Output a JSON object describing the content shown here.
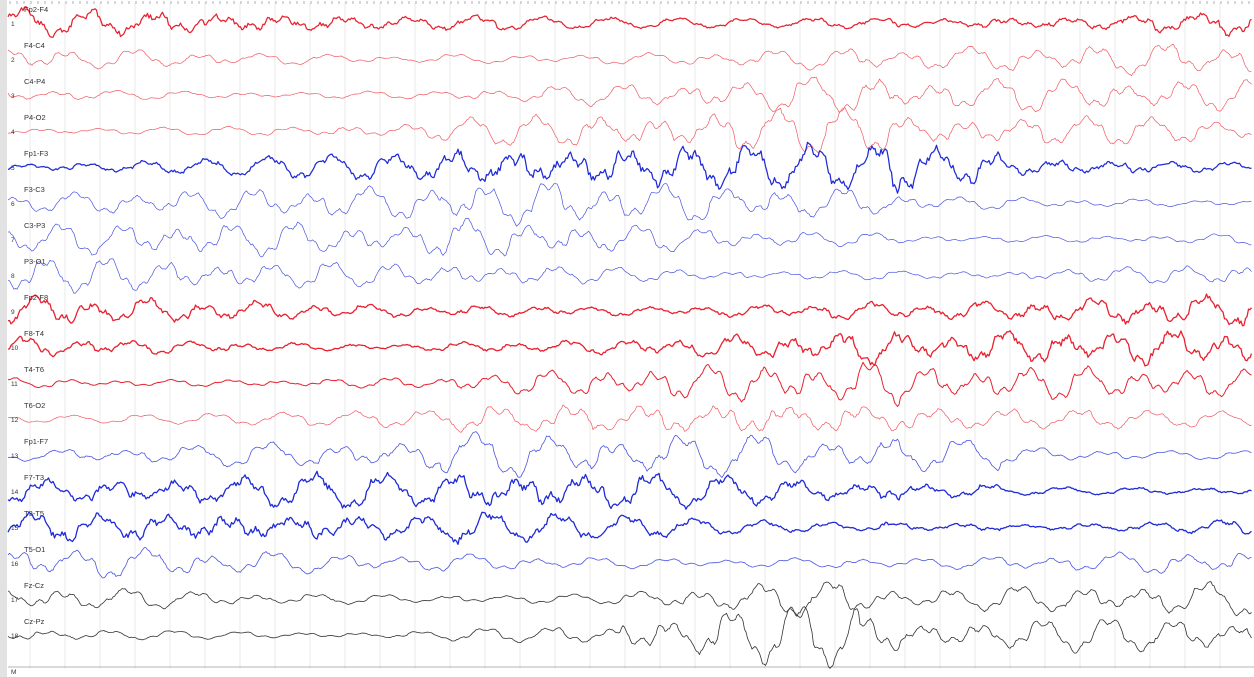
{
  "view": {
    "montage": [
      {
        "num": "1",
        "label": "Fp2-F4",
        "color": "#e8212f",
        "weight": 1.25
      },
      {
        "num": "2",
        "label": "F4-C4",
        "color": "#ef5a63",
        "weight": 0.7
      },
      {
        "num": "3",
        "label": "C4-P4",
        "color": "#ef5a63",
        "weight": 0.7
      },
      {
        "num": "4",
        "label": "P4-O2",
        "color": "#ef5a63",
        "weight": 0.7
      },
      {
        "num": "5",
        "label": "Fp1-F3",
        "color": "#1f2bd6",
        "weight": 1.25
      },
      {
        "num": "6",
        "label": "F3-C3",
        "color": "#4a55e0",
        "weight": 0.7
      },
      {
        "num": "7",
        "label": "C3-P3",
        "color": "#4a55e0",
        "weight": 0.7
      },
      {
        "num": "8",
        "label": "P3-O1",
        "color": "#4a55e0",
        "weight": 0.7
      },
      {
        "num": "9",
        "label": "Fp2-F8",
        "color": "#e8212f",
        "weight": 1.3
      },
      {
        "num": "10",
        "label": "F8-T4",
        "color": "#e8212f",
        "weight": 1.3
      },
      {
        "num": "11",
        "label": "T4-T6",
        "color": "#e8212f",
        "weight": 1.0
      },
      {
        "num": "12",
        "label": "T6-O2",
        "color": "#ef5a63",
        "weight": 0.7
      },
      {
        "num": "13",
        "label": "Fp1-F7",
        "color": "#4a55e0",
        "weight": 0.8
      },
      {
        "num": "14",
        "label": "F7-T3",
        "color": "#1f2bd6",
        "weight": 1.3
      },
      {
        "num": "15",
        "label": "T3-T5",
        "color": "#1f2bd6",
        "weight": 1.3
      },
      {
        "num": "16",
        "label": "T5-O1",
        "color": "#4a55e0",
        "weight": 0.8
      },
      {
        "num": "17",
        "label": "Fz-Cz",
        "color": "#333333",
        "weight": 0.8
      },
      {
        "num": "18",
        "label": "Cz-Pz",
        "color": "#333333",
        "weight": 0.8
      },
      {
        "num": "M",
        "label": "",
        "color": "#333333",
        "weight": 0.8
      }
    ]
  }
}
